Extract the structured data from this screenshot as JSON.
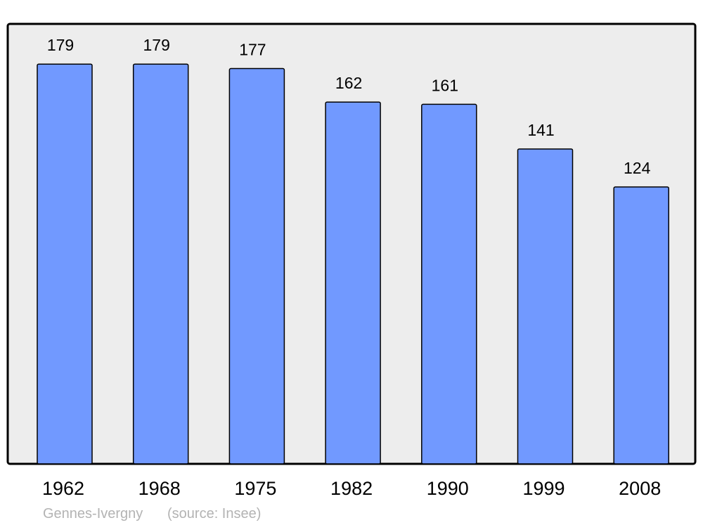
{
  "chart_data": {
    "type": "bar",
    "categories": [
      "1962",
      "1968",
      "1975",
      "1982",
      "1990",
      "1999",
      "2008"
    ],
    "values": [
      179,
      179,
      177,
      162,
      161,
      141,
      124
    ],
    "data_labels": [
      "179",
      "179",
      "177",
      "162",
      "161",
      "141",
      "124"
    ],
    "title": "",
    "xlabel": "",
    "ylabel": "",
    "ylim": [
      0,
      197
    ],
    "grid": false,
    "colors": {
      "bar": "#7199ff",
      "plot_background": "#ededed",
      "border": "#000000",
      "footer_text": "#b3b3b3"
    }
  },
  "footer": {
    "place": "Gennes-Ivergny",
    "source": "(source: Insee)"
  }
}
